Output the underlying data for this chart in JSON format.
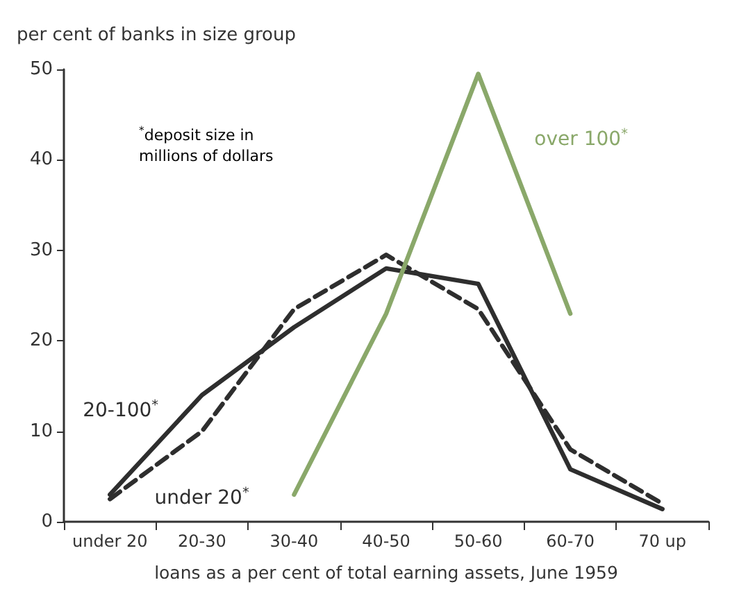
{
  "chart_data": {
    "type": "line",
    "ylabel": "per cent of banks in size group",
    "xlabel": "loans as a per cent of total earning assets, June 1959",
    "categories": [
      "under 20",
      "20-30",
      "30-40",
      "40-50",
      "50-60",
      "60-70",
      "70 up"
    ],
    "series": [
      {
        "name": "20-100$^{*}$",
        "color": "#2e2e2e",
        "line_style": "solid",
        "values": [
          3,
          14,
          21.5,
          28,
          26.3,
          5.8,
          1.4
        ]
      },
      {
        "name": "under 20$^{*}$",
        "color": "#2e2e2e",
        "line_style": "dashed",
        "values": [
          2.5,
          10,
          23.5,
          29.5,
          23.5,
          8,
          2
        ]
      },
      {
        "name": "over 100$^{*}$",
        "color": "#8aa86a",
        "line_style": "solid",
        "values": [
          null,
          null,
          3,
          23,
          49.5,
          23,
          null
        ]
      }
    ],
    "ylim": [
      0,
      50
    ],
    "yticks": [
      0,
      10,
      20,
      30,
      40,
      50
    ],
    "grid": false,
    "legend": false,
    "marker": "none",
    "annotations": [
      "$^{*}$deposit size in\nmillions of dollars"
    ]
  }
}
